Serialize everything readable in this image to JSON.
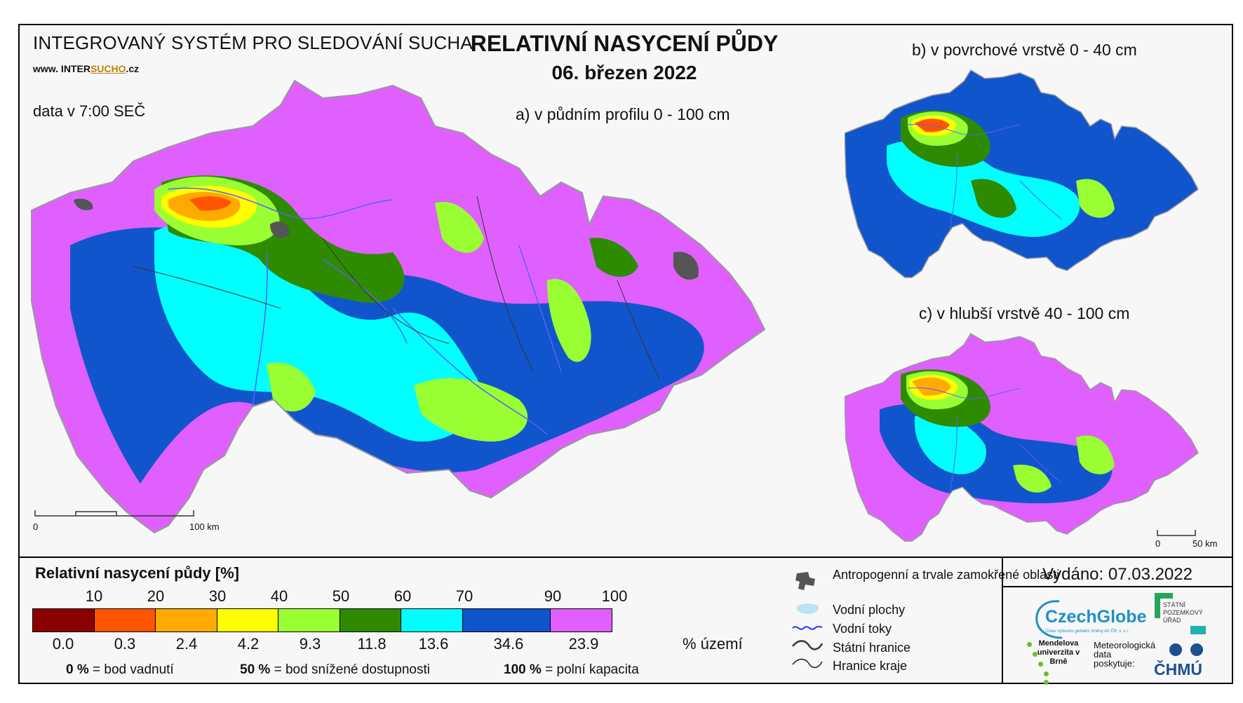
{
  "header": {
    "system_title": "INTEGROVANÝ SYSTÉM PRO SLEDOVÁNÍ SUCHA",
    "url_prefix": "www. INTER",
    "url_highlight": "SUCHO",
    "url_suffix": ".cz",
    "data_time": "data v 7:00 SEČ",
    "map_title": "RELATIVNÍ NASYCENÍ PŮDY",
    "map_date": "06. březen 2022"
  },
  "maps": {
    "a_label": "a) v půdním profilu 0 - 100 cm",
    "b_label": "b) v povrchové vrstvě 0 - 40 cm",
    "c_label": "c) v hlubší vrstvě 40 - 100 cm",
    "scale_a": {
      "start": "0",
      "end": "100 km"
    },
    "scale_c": {
      "start": "0",
      "end": "50 km"
    }
  },
  "legend": {
    "title": "Relativní nasycení půdy [%]",
    "thresholds": [
      "10",
      "20",
      "30",
      "40",
      "50",
      "60",
      "70",
      "90",
      "100"
    ],
    "classes": [
      {
        "color": "#8b0000",
        "area": "0.0"
      },
      {
        "color": "#ff5500",
        "area": "0.3"
      },
      {
        "color": "#ffaa00",
        "area": "2.4"
      },
      {
        "color": "#ffff00",
        "area": "4.2"
      },
      {
        "color": "#99ff33",
        "area": "9.3"
      },
      {
        "color": "#2e8b00",
        "area": "11.8"
      },
      {
        "color": "#00ffff",
        "area": "13.6"
      },
      {
        "color": "#1155cc",
        "area": "34.6"
      },
      {
        "color": "#e060ff",
        "area": "23.9"
      }
    ],
    "area_unit": "% území",
    "note_0_value": "0 %",
    "note_0_text": "= bod vadnutí",
    "note_50_value": "50 %",
    "note_50_text": "= bod snížené dostupnosti",
    "note_100_value": "100 %",
    "note_100_text": "= polní kapacita"
  },
  "symbols": {
    "anthropogenic": "Antropogenní a trvale zamokřené oblasti",
    "water_bodies": "Vodní plochy",
    "streams": "Vodní toky",
    "state_border": "Státní hranice",
    "region_border": "Hranice kraje"
  },
  "footer": {
    "issued": "Vydáno: 07.03.2022",
    "czechglobe": "CzechGlobe",
    "czechglobe_sub": "Ústav výzkumu globální změny AV ČR, v. v. i.",
    "spu": "STÁTNÍ POZEMKOVÝ ÚŘAD",
    "mendel": "Mendelova univerzita v Brně",
    "chmu_prefix": "Meteorologická data poskytuje:",
    "chmu": "ČHMÚ"
  }
}
